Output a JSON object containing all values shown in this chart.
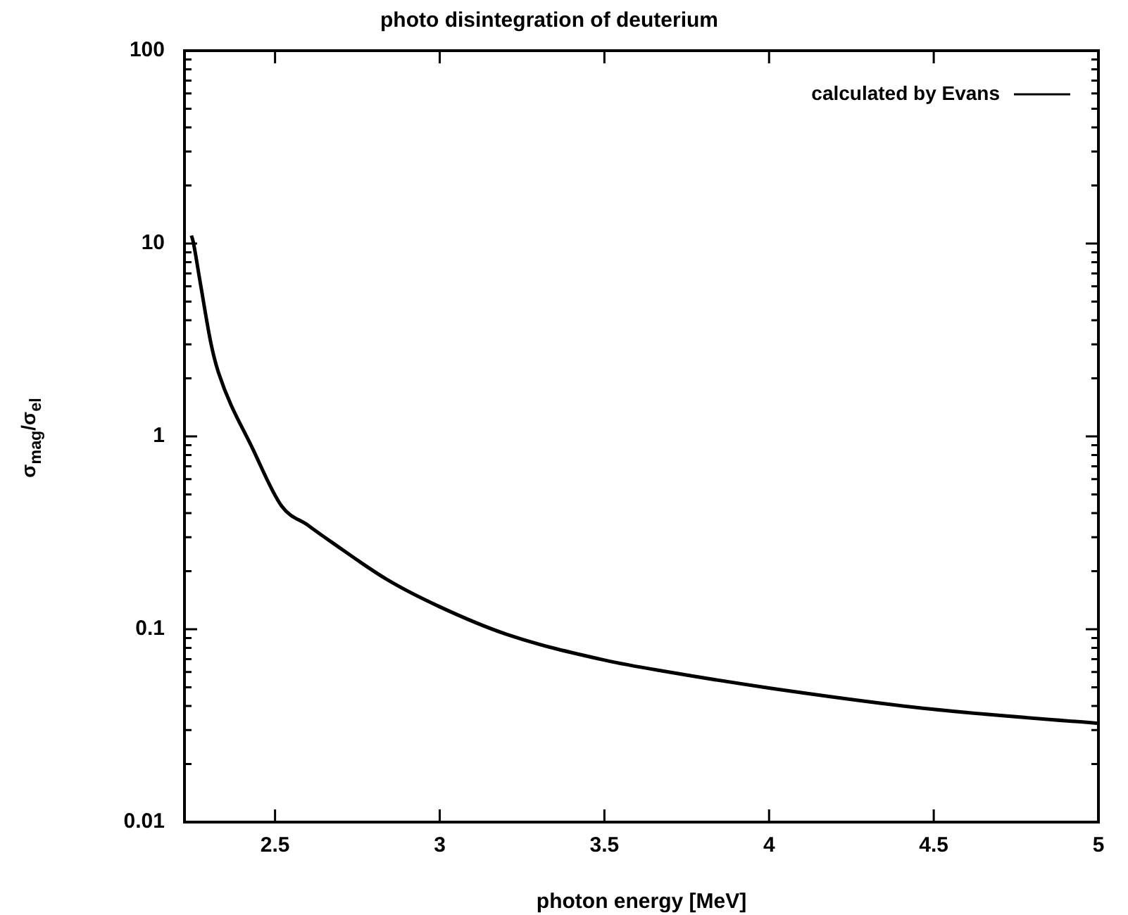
{
  "chart_data": {
    "type": "line",
    "title": "photo disintegration of deuterium",
    "xlabel": "photon energy [MeV]",
    "ylabel": "σ$_{mag}$/σ$_{el}$",
    "x": [
      2.246,
      2.251,
      2.272,
      2.306,
      2.328,
      2.434,
      2.52,
      2.6,
      2.669,
      2.84,
      2.999,
      3.204,
      3.503,
      3.695,
      4.003,
      4.494,
      5.0
    ],
    "series": [
      {
        "name": "calculated by Evans",
        "color": "#000000",
        "values": [
          11.0,
          10.3,
          6.4,
          3.0,
          2.15,
          0.85,
          0.435,
          0.346,
          0.285,
          0.181,
          0.131,
          0.094,
          0.069,
          0.06,
          0.0495,
          0.0385,
          0.0325
        ]
      }
    ],
    "xlim": [
      2.225,
      5
    ],
    "xticks": [
      2.5,
      3,
      3.5,
      4,
      4.5,
      5
    ],
    "ylim": [
      0.01,
      100
    ],
    "yticks": [
      0.01,
      0.1,
      1,
      10,
      100
    ],
    "log": "y",
    "grid": false,
    "legend": "top right",
    "marker": "none",
    "line_style": "solid"
  }
}
